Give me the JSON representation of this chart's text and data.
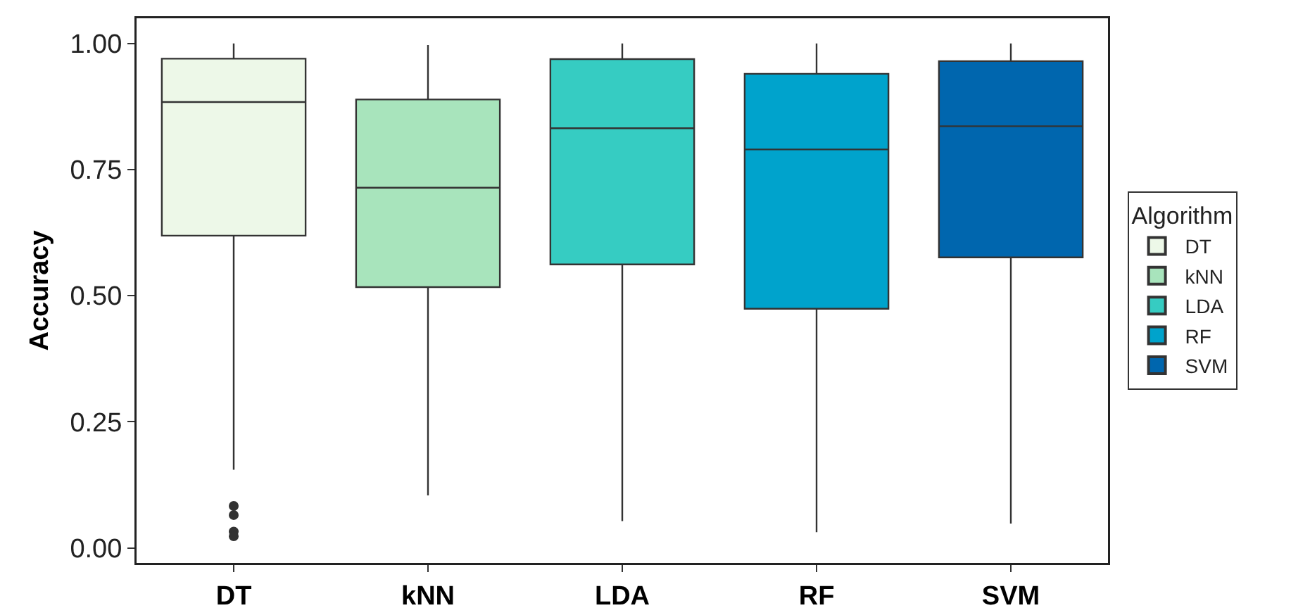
{
  "chart_data": {
    "type": "box",
    "ylabel": "Accuracy",
    "legend_title": "Algorithm",
    "legend": "right",
    "grid": false,
    "categories": [
      "DT",
      "kNN",
      "LDA",
      "RF",
      "SVM"
    ],
    "ylim": [
      -0.03,
      1.05
    ],
    "yticks": [
      {
        "value": 0,
        "label": "0.00"
      },
      {
        "value": 0.25,
        "label": "0.25"
      },
      {
        "value": 0.5,
        "label": "0.50"
      },
      {
        "value": 0.75,
        "label": "0.75"
      },
      {
        "value": 1,
        "label": "1.00"
      }
    ],
    "series": [
      {
        "name": "DT",
        "color": "#edf8e8",
        "boxes": [
          {
            "low": 0.155,
            "q1": 0.619,
            "median": 0.884,
            "q3": 0.97,
            "high": 1.0,
            "outliers": [
              0.083,
              0.065,
              0.032,
              0.023
            ]
          },
          null,
          null,
          null,
          null
        ]
      },
      {
        "name": "kNN",
        "color": "#a8e4bc",
        "boxes": [
          null,
          {
            "low": 0.104,
            "q1": 0.517,
            "median": 0.714,
            "q3": 0.889,
            "high": 0.997
          },
          null,
          null,
          null
        ]
      },
      {
        "name": "LDA",
        "color": "#36ccc2",
        "boxes": [
          null,
          null,
          {
            "low": 0.053,
            "q1": 0.562,
            "median": 0.832,
            "q3": 0.969,
            "high": 1.0
          },
          null,
          null
        ]
      },
      {
        "name": "RF",
        "color": "#00a3cc",
        "boxes": [
          null,
          null,
          null,
          {
            "low": 0.031,
            "q1": 0.474,
            "median": 0.79,
            "q3": 0.94,
            "high": 1.0
          },
          null
        ]
      },
      {
        "name": "SVM",
        "color": "#0066ae",
        "boxes": [
          null,
          null,
          null,
          null,
          {
            "low": 0.048,
            "q1": 0.576,
            "median": 0.836,
            "q3": 0.965,
            "high": 1.0
          }
        ]
      }
    ]
  }
}
